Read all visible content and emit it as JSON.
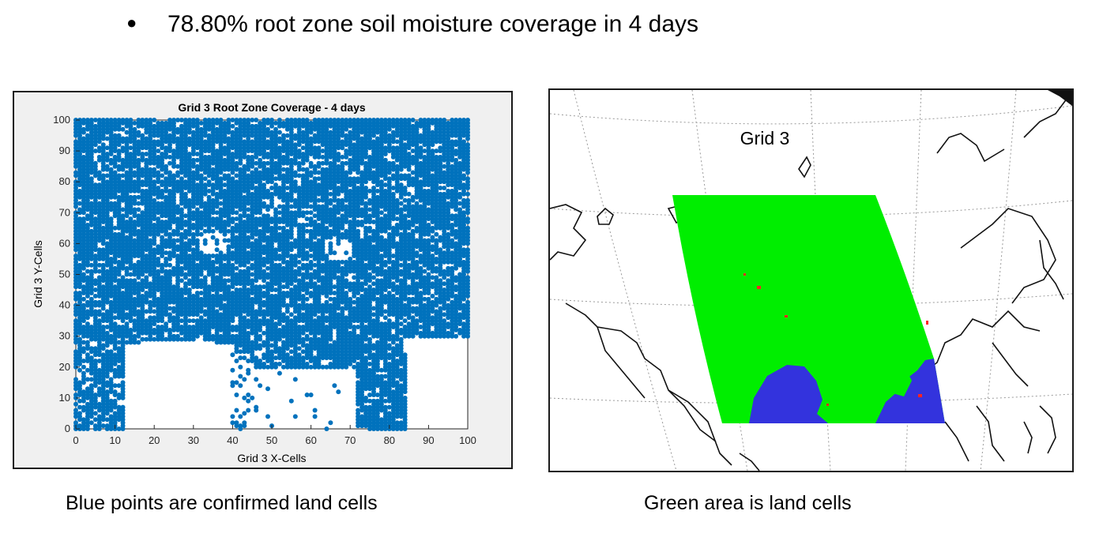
{
  "headline": {
    "bullet": "●",
    "text": "78.80% root zone soil moisture coverage in 4 days"
  },
  "captions": {
    "left": "Blue points are confirmed land cells",
    "right": "Green area is land cells"
  },
  "chart_data": {
    "type": "scatter",
    "title": "Grid 3 Root Zone Coverage - 4 days",
    "xlabel": "Grid 3 X-Cells",
    "ylabel": "Grid 3 Y-Cells",
    "xlim": [
      0,
      100
    ],
    "ylim": [
      0,
      100
    ],
    "xticks": [
      0,
      10,
      20,
      30,
      40,
      50,
      60,
      70,
      80,
      90,
      100
    ],
    "yticks": [
      0,
      10,
      20,
      30,
      40,
      50,
      60,
      70,
      80,
      90,
      100
    ],
    "grid": false,
    "point_color": "#0072bd",
    "coverage_percent": 78.8,
    "point_density": "dense coverage of blue points over most of the grid; sparse/empty in lower-left (x 12-40, y 0-28), lower-middle (x 45-70, y 0-20) and lower-right (x 84-100, y 0-30)"
  },
  "map": {
    "label": "Grid 3",
    "land_color": "#00ee00",
    "water_color": "#3333dd",
    "outline_color": "#111111",
    "marker_color": "#ff2222"
  }
}
